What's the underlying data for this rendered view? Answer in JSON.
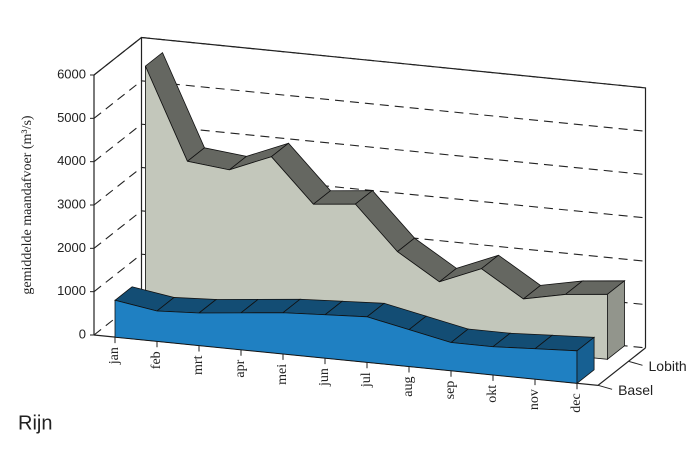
{
  "chart_data": {
    "type": "area3d",
    "y_label": "gemiddelde maandafvoer (m³/s)",
    "caption": "Rijn",
    "categories": [
      "jan",
      "feb",
      "mrt",
      "apr",
      "mei",
      "jun",
      "jul",
      "aug",
      "sep",
      "okt",
      "nov",
      "dec"
    ],
    "series": [
      {
        "name": "Lobith",
        "color": "#c3c7bb",
        "values": [
          5700,
          3600,
          3500,
          3900,
          2900,
          3000,
          2000,
          1400,
          1800,
          1200,
          1400,
          1500
        ]
      },
      {
        "name": "Basel",
        "color": "#1f80c2",
        "values": [
          850,
          700,
          750,
          850,
          950,
          1000,
          1050,
          850,
          650,
          650,
          700,
          750
        ]
      }
    ],
    "ylim": [
      0,
      6000
    ],
    "yticks": [
      0,
      1000,
      2000,
      3000,
      4000,
      5000,
      6000
    ],
    "grid": true
  }
}
